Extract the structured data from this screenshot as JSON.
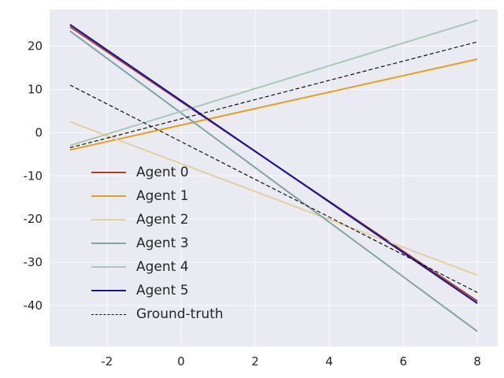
{
  "chart_data": {
    "type": "line",
    "title": "",
    "xlabel": "",
    "ylabel": "",
    "xlim": [
      -3.55,
      8.55
    ],
    "ylim": [
      -49.5,
      28.5
    ],
    "x_ticks": [
      -2,
      0,
      2,
      4,
      6,
      8
    ],
    "y_ticks": [
      20,
      10,
      0,
      -10,
      -20,
      -30,
      -40
    ],
    "grid": true,
    "plot_bg": "#eaeaf2",
    "grid_color": "#ffffff",
    "tick_color": "#262626",
    "legend_position": "center-left",
    "series": [
      {
        "name": "Agent 0",
        "color": "#a5402b",
        "width": 2,
        "dashed": false,
        "segments": [
          [
            [
              -3,
              24.5
            ],
            [
              8,
              -39
            ]
          ]
        ]
      },
      {
        "name": "Agent 1",
        "color": "#e69f17",
        "width": 2,
        "dashed": false,
        "segments": [
          [
            [
              -3,
              -4
            ],
            [
              8,
              17
            ]
          ]
        ]
      },
      {
        "name": "Agent 2",
        "color": "#e3cfa2",
        "width": 2,
        "dashed": false,
        "segments": [
          [
            [
              -3,
              2.5
            ],
            [
              8,
              -33
            ]
          ]
        ]
      },
      {
        "name": "Agent 3",
        "color": "#80a4a3",
        "width": 2,
        "dashed": false,
        "segments": [
          [
            [
              -3,
              23.5
            ],
            [
              8,
              -46
            ]
          ]
        ]
      },
      {
        "name": "Agent 4",
        "color": "#a9c9b2",
        "width": 2,
        "dashed": false,
        "segments": [
          [
            [
              -3,
              -3
            ],
            [
              8,
              26
            ]
          ]
        ]
      },
      {
        "name": "Agent 5",
        "color": "#1613a2",
        "width": 2,
        "dashed": false,
        "segments": [
          [
            [
              -3,
              25
            ],
            [
              8,
              -39.5
            ]
          ]
        ]
      },
      {
        "name": "Ground-truth",
        "color": "#111111",
        "width": 1.2,
        "dashed": true,
        "segments": [
          [
            [
              -3,
              11
            ],
            [
              8,
              -37
            ]
          ],
          [
            [
              -3,
              -3.5
            ],
            [
              8,
              21
            ]
          ]
        ]
      }
    ]
  }
}
